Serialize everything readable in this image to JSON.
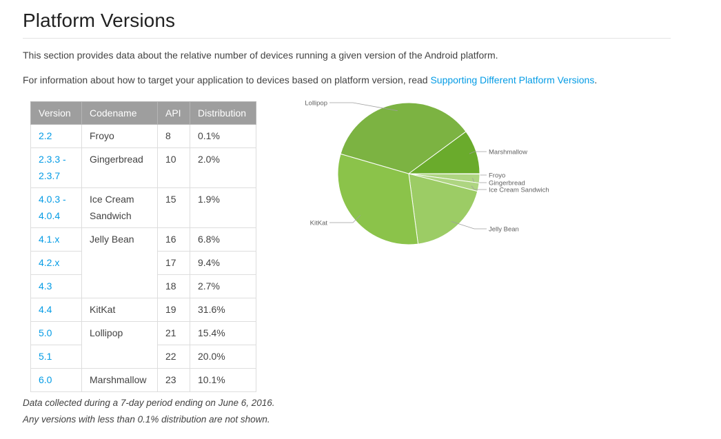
{
  "page": {
    "title": "Platform Versions",
    "intro_1": "This section provides data about the relative number of devices running a given version of the Android platform.",
    "intro_2_prefix": "For information about how to target your application to devices based on platform version, read ",
    "intro_2_link": "Supporting Different Platform Versions",
    "intro_2_suffix": "."
  },
  "table": {
    "headers": [
      "Version",
      "Codename",
      "API",
      "Distribution"
    ],
    "rows": [
      {
        "version": "2.2",
        "codename": "Froyo",
        "api": "8",
        "distribution": "0.1%"
      },
      {
        "version": "2.3.3 - 2.3.7",
        "codename": "Gingerbread",
        "api": "10",
        "distribution": "2.0%"
      },
      {
        "version": "4.0.3 - 4.0.4",
        "codename": "Ice Cream Sandwich",
        "api": "15",
        "distribution": "1.9%"
      },
      {
        "version": "4.1.x",
        "codename": "Jelly Bean",
        "api": "16",
        "distribution": "6.8%"
      },
      {
        "version": "4.2.x",
        "codename": "",
        "api": "17",
        "distribution": "9.4%"
      },
      {
        "version": "4.3",
        "codename": "",
        "api": "18",
        "distribution": "2.7%"
      },
      {
        "version": "4.4",
        "codename": "KitKat",
        "api": "19",
        "distribution": "31.6%"
      },
      {
        "version": "5.0",
        "codename": "Lollipop",
        "api": "21",
        "distribution": "15.4%"
      },
      {
        "version": "5.1",
        "codename": "",
        "api": "22",
        "distribution": "20.0%"
      },
      {
        "version": "6.0",
        "codename": "Marshmallow",
        "api": "23",
        "distribution": "10.1%"
      }
    ]
  },
  "chart_data": {
    "type": "pie",
    "title": "",
    "slices": [
      {
        "label": "Froyo",
        "value": 0.1,
        "color": "#c5e1a5"
      },
      {
        "label": "Gingerbread",
        "value": 2.0,
        "color": "#aed581"
      },
      {
        "label": "Ice Cream Sandwich",
        "value": 1.9,
        "color": "#aed581"
      },
      {
        "label": "Jelly Bean",
        "value": 18.9,
        "color": "#9ccc65"
      },
      {
        "label": "KitKat",
        "value": 31.6,
        "color": "#8bc34a"
      },
      {
        "label": "Lollipop",
        "value": 35.4,
        "color": "#7cb342"
      },
      {
        "label": "Marshmallow",
        "value": 10.1,
        "color": "#6aab2c"
      }
    ]
  },
  "footnotes": {
    "line_1": "Data collected during a 7-day period ending on June 6, 2016.",
    "line_2": "Any versions with less than 0.1% distribution are not shown."
  }
}
